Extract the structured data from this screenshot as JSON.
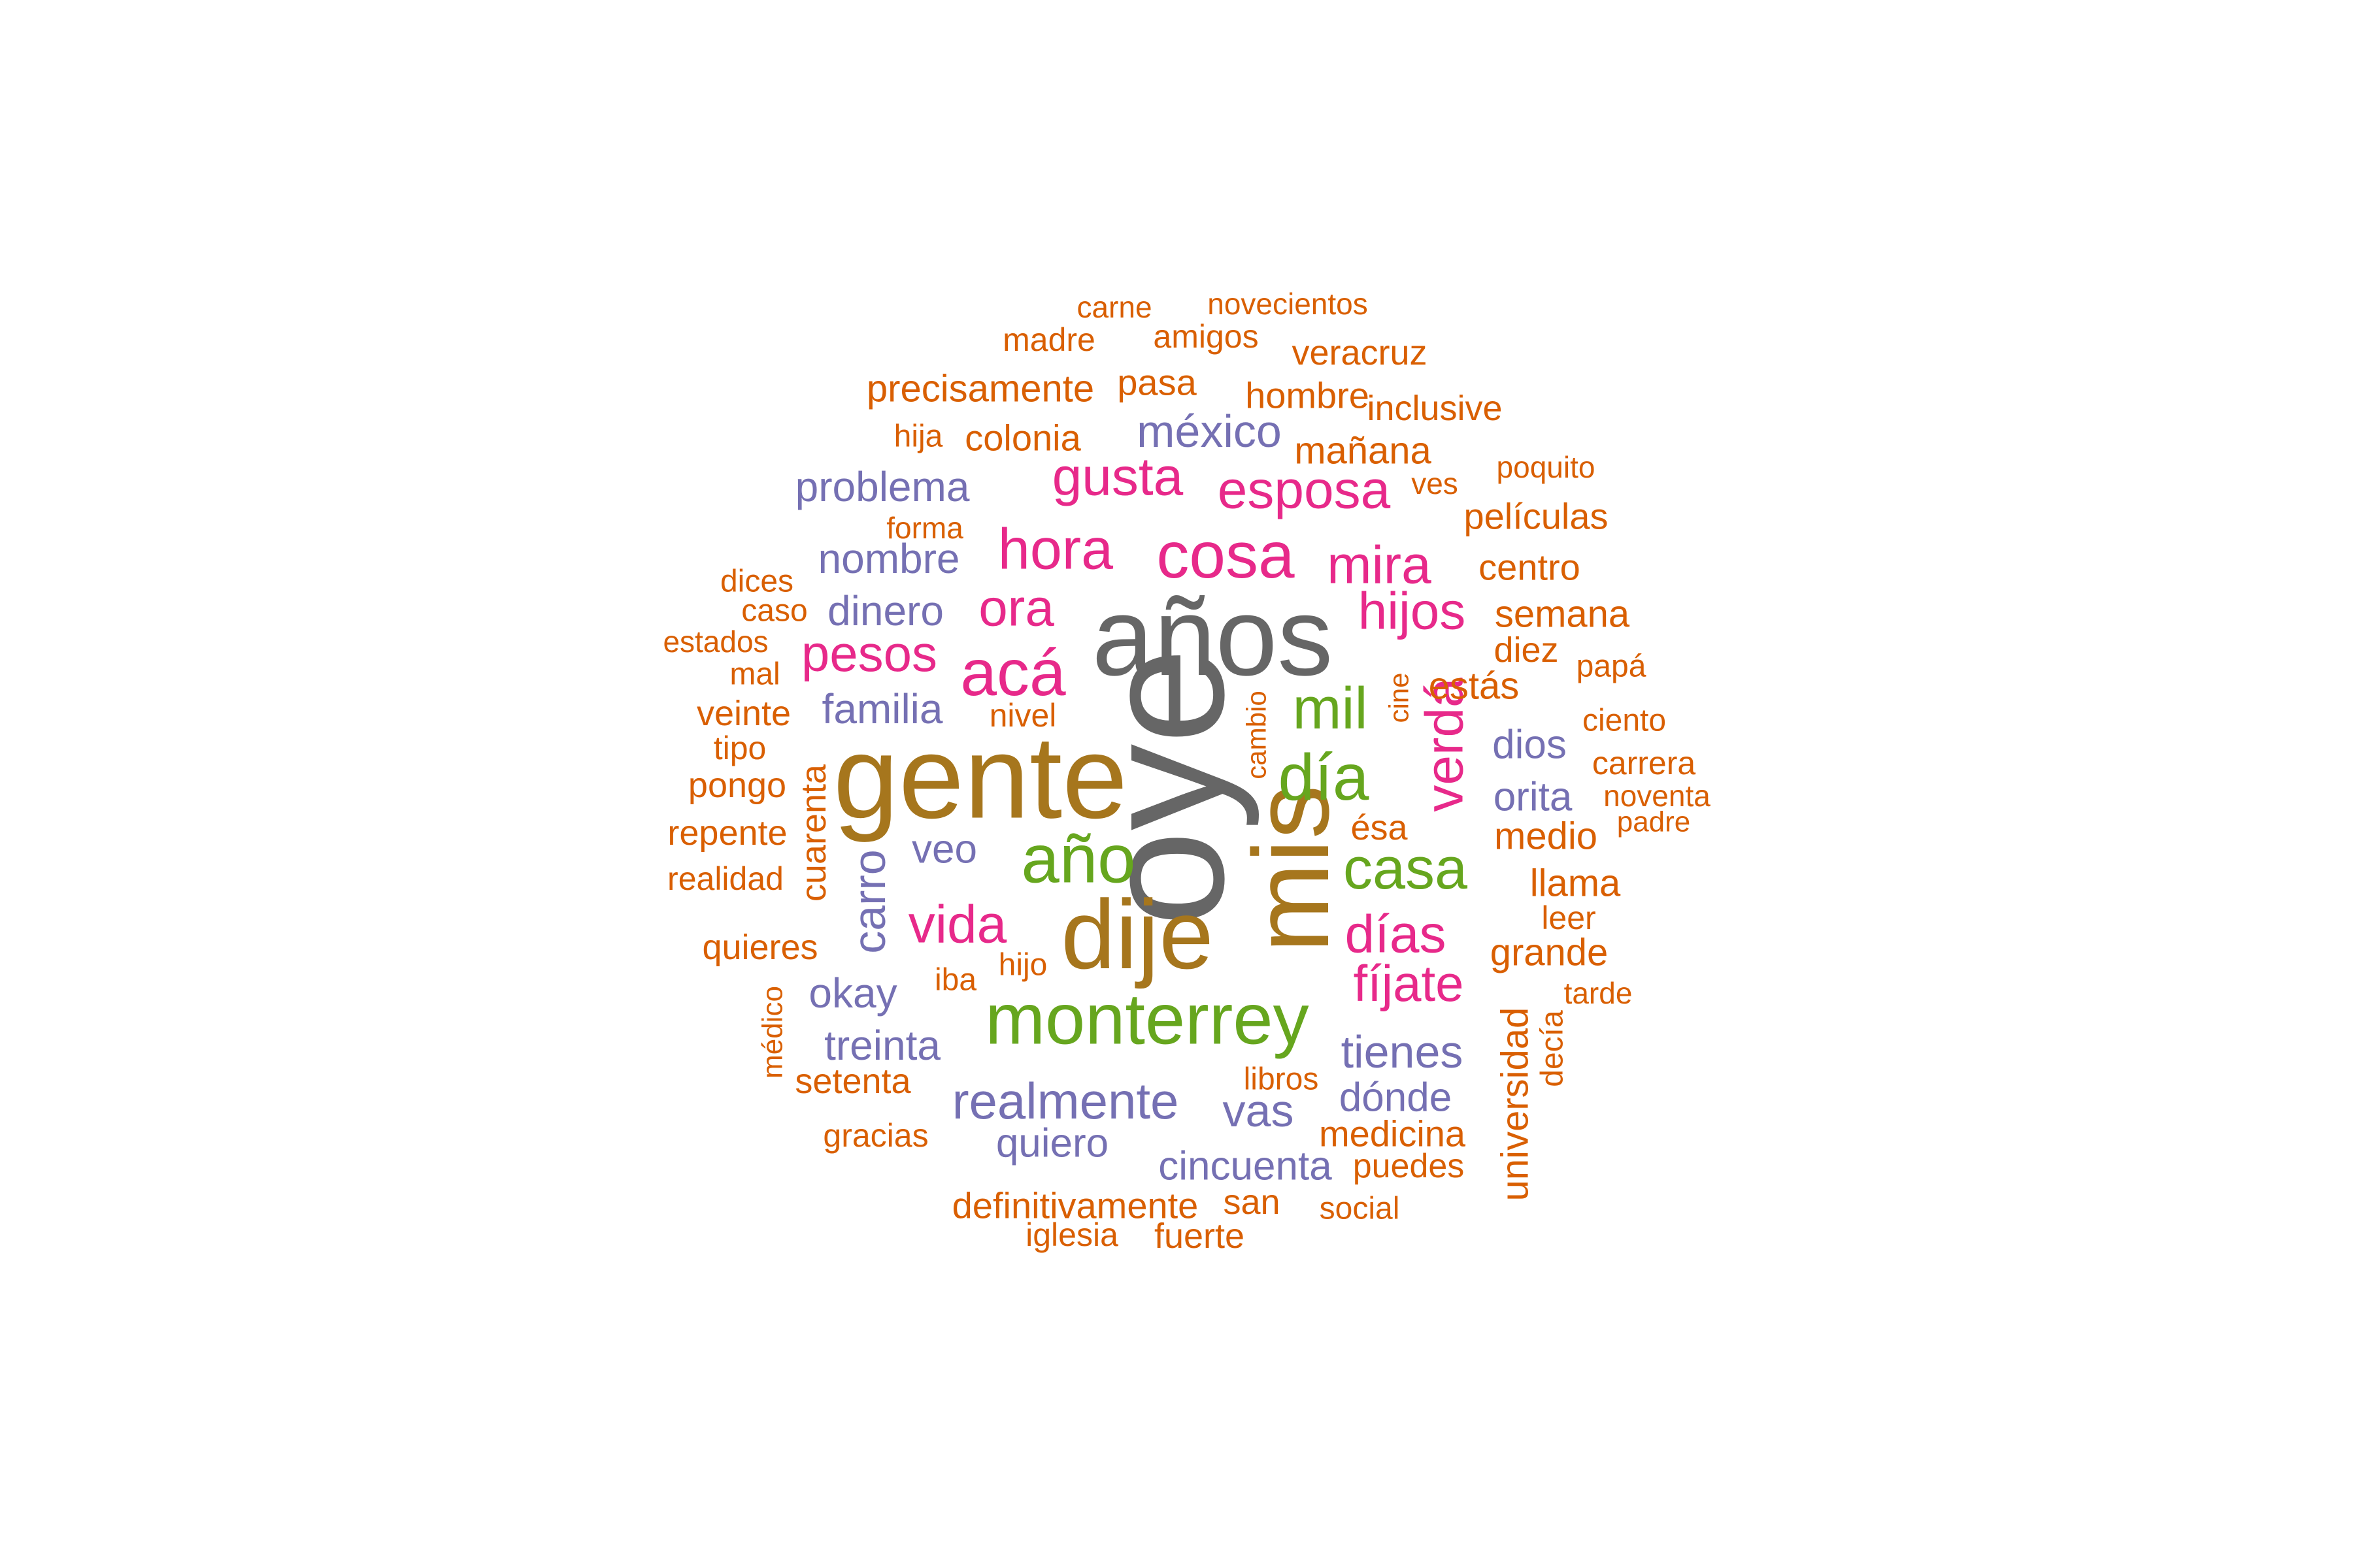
{
  "colors": {
    "gray": "#666666",
    "brown": "#a6761d",
    "green": "#66a61e",
    "magenta": "#e7298a",
    "purple": "#7570b3",
    "orange": "#d95f02"
  },
  "words": [
    {
      "text": "oye",
      "color": "gray",
      "vertical": true
    },
    {
      "text": "años",
      "color": "gray"
    },
    {
      "text": "gente",
      "color": "brown"
    },
    {
      "text": "dije",
      "color": "brown"
    },
    {
      "text": "mis",
      "color": "brown",
      "vertical": true
    },
    {
      "text": "monterrey",
      "color": "green"
    },
    {
      "text": "año",
      "color": "green"
    },
    {
      "text": "casa",
      "color": "green"
    },
    {
      "text": "día",
      "color": "green"
    },
    {
      "text": "mil",
      "color": "green"
    },
    {
      "text": "cosa",
      "color": "magenta"
    },
    {
      "text": "acá",
      "color": "magenta"
    },
    {
      "text": "hora",
      "color": "magenta"
    },
    {
      "text": "esposa",
      "color": "magenta"
    },
    {
      "text": "gusta",
      "color": "magenta"
    },
    {
      "text": "mira",
      "color": "magenta"
    },
    {
      "text": "ora",
      "color": "magenta"
    },
    {
      "text": "hijos",
      "color": "magenta"
    },
    {
      "text": "pesos",
      "color": "magenta"
    },
    {
      "text": "verdá",
      "color": "magenta",
      "vertical": true
    },
    {
      "text": "vida",
      "color": "magenta"
    },
    {
      "text": "días",
      "color": "magenta"
    },
    {
      "text": "fíjate",
      "color": "magenta"
    },
    {
      "text": "méxico",
      "color": "purple"
    },
    {
      "text": "problema",
      "color": "purple"
    },
    {
      "text": "nombre",
      "color": "purple"
    },
    {
      "text": "dinero",
      "color": "purple"
    },
    {
      "text": "familia",
      "color": "purple"
    },
    {
      "text": "realmente",
      "color": "purple"
    },
    {
      "text": "carro",
      "color": "purple",
      "vertical": true
    },
    {
      "text": "tienes",
      "color": "purple"
    },
    {
      "text": "vas",
      "color": "purple"
    },
    {
      "text": "okay",
      "color": "purple"
    },
    {
      "text": "treinta",
      "color": "purple"
    },
    {
      "text": "veo",
      "color": "purple"
    },
    {
      "text": "quiero",
      "color": "purple"
    },
    {
      "text": "cincuenta",
      "color": "purple"
    },
    {
      "text": "dios",
      "color": "purple"
    },
    {
      "text": "orita",
      "color": "purple"
    },
    {
      "text": "dónde",
      "color": "purple"
    },
    {
      "text": "precisamente",
      "color": "orange"
    },
    {
      "text": "carne",
      "color": "orange"
    },
    {
      "text": "novecientos",
      "color": "orange"
    },
    {
      "text": "madre",
      "color": "orange"
    },
    {
      "text": "amigos",
      "color": "orange"
    },
    {
      "text": "veracruz",
      "color": "orange"
    },
    {
      "text": "pasa",
      "color": "orange"
    },
    {
      "text": "hombre",
      "color": "orange"
    },
    {
      "text": "inclusive",
      "color": "orange"
    },
    {
      "text": "hija",
      "color": "orange"
    },
    {
      "text": "colonia",
      "color": "orange"
    },
    {
      "text": "mañana",
      "color": "orange"
    },
    {
      "text": "poquito",
      "color": "orange"
    },
    {
      "text": "ves",
      "color": "orange"
    },
    {
      "text": "forma",
      "color": "orange"
    },
    {
      "text": "películas",
      "color": "orange"
    },
    {
      "text": "dices",
      "color": "orange"
    },
    {
      "text": "centro",
      "color": "orange"
    },
    {
      "text": "caso",
      "color": "orange"
    },
    {
      "text": "semana",
      "color": "orange"
    },
    {
      "text": "estados",
      "color": "orange"
    },
    {
      "text": "diez",
      "color": "orange"
    },
    {
      "text": "papá",
      "color": "orange"
    },
    {
      "text": "mal",
      "color": "orange"
    },
    {
      "text": "estás",
      "color": "orange"
    },
    {
      "text": "veinte",
      "color": "orange"
    },
    {
      "text": "nivel",
      "color": "orange"
    },
    {
      "text": "ciento",
      "color": "orange"
    },
    {
      "text": "cine",
      "color": "orange",
      "vertical": true
    },
    {
      "text": "tipo",
      "color": "orange"
    },
    {
      "text": "cambio",
      "color": "orange",
      "vertical": true
    },
    {
      "text": "carrera",
      "color": "orange"
    },
    {
      "text": "pongo",
      "color": "orange"
    },
    {
      "text": "noventa",
      "color": "orange"
    },
    {
      "text": "cuarenta",
      "color": "orange",
      "vertical": true
    },
    {
      "text": "padre",
      "color": "orange"
    },
    {
      "text": "repente",
      "color": "orange"
    },
    {
      "text": "ésa",
      "color": "orange"
    },
    {
      "text": "medio",
      "color": "orange"
    },
    {
      "text": "realidad",
      "color": "orange"
    },
    {
      "text": "llama",
      "color": "orange"
    },
    {
      "text": "leer",
      "color": "orange"
    },
    {
      "text": "quieres",
      "color": "orange"
    },
    {
      "text": "grande",
      "color": "orange"
    },
    {
      "text": "iba",
      "color": "orange"
    },
    {
      "text": "hijo",
      "color": "orange"
    },
    {
      "text": "tarde",
      "color": "orange"
    },
    {
      "text": "médico",
      "color": "orange",
      "vertical": true
    },
    {
      "text": "decía",
      "color": "orange",
      "vertical": true
    },
    {
      "text": "universidad",
      "color": "orange",
      "vertical": true
    },
    {
      "text": "setenta",
      "color": "orange"
    },
    {
      "text": "libros",
      "color": "orange"
    },
    {
      "text": "medicina",
      "color": "orange"
    },
    {
      "text": "gracias",
      "color": "orange"
    },
    {
      "text": "puedes",
      "color": "orange"
    },
    {
      "text": "definitivamente",
      "color": "orange"
    },
    {
      "text": "san",
      "color": "orange"
    },
    {
      "text": "social",
      "color": "orange"
    },
    {
      "text": "iglesia",
      "color": "orange"
    },
    {
      "text": "fuerte",
      "color": "orange"
    }
  ]
}
